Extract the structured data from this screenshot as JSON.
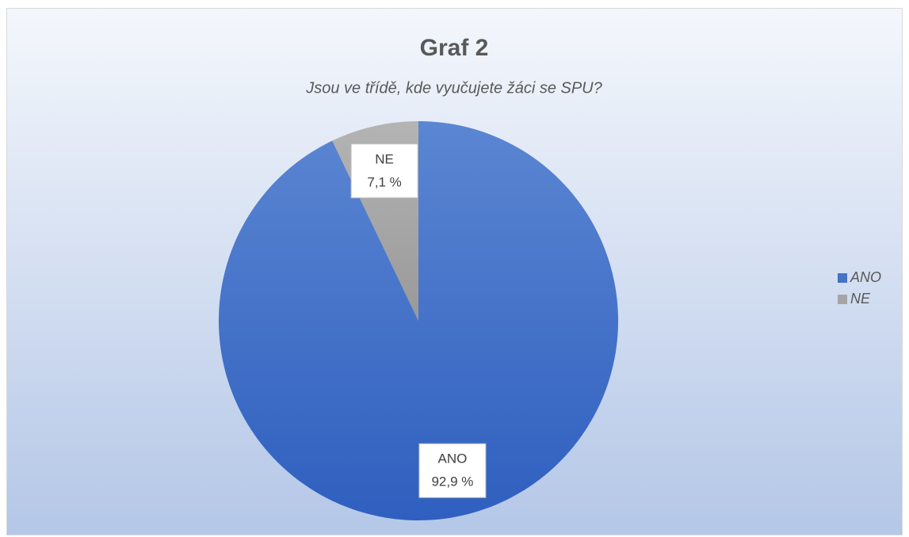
{
  "chart_data": {
    "type": "pie",
    "title": "Graf 2",
    "subtitle": "Jsou ve třídě, kde vyučujete žáci se SPU?",
    "categories": [
      "ANO",
      "NE"
    ],
    "values": [
      92.9,
      7.1
    ],
    "value_labels": [
      "92,9 %",
      "7,1 %"
    ],
    "colors": [
      "#4472c4",
      "#a5a5a5"
    ],
    "legend": "right"
  }
}
